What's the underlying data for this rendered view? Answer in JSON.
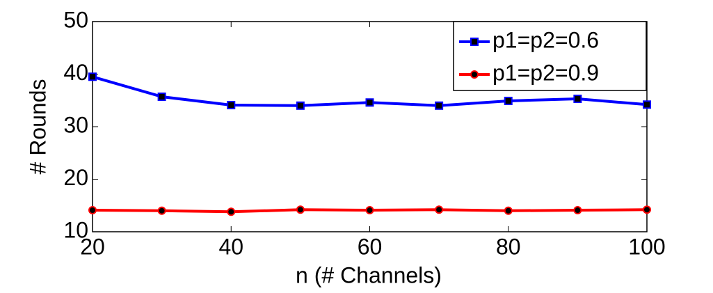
{
  "chart_data": {
    "type": "line",
    "xlabel": "n (# Channels)",
    "ylabel": "# Rounds",
    "x": [
      20,
      30,
      40,
      50,
      60,
      70,
      80,
      90,
      100
    ],
    "series": [
      {
        "name": "p1=p2=0.6",
        "color": "#0000ff",
        "marker": "square",
        "values": [
          39.5,
          35.7,
          34.1,
          34.0,
          34.6,
          34.0,
          34.9,
          35.3,
          34.2
        ]
      },
      {
        "name": "p1=p2=0.9",
        "color": "#ff0000",
        "marker": "circle",
        "values": [
          14.1,
          14.0,
          13.8,
          14.2,
          14.1,
          14.2,
          14.0,
          14.1,
          14.2
        ]
      }
    ],
    "xlim": [
      20,
      100
    ],
    "xticks": [
      20,
      40,
      60,
      80,
      100
    ],
    "ylim": [
      10,
      50
    ],
    "yticks": [
      10,
      20,
      30,
      40,
      50
    ],
    "legend": "upper right",
    "grid": false
  }
}
